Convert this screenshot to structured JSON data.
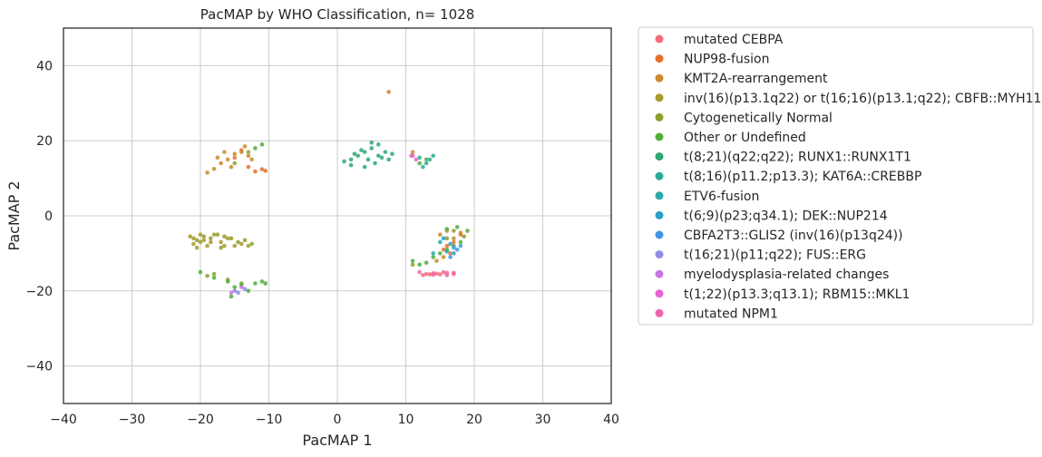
{
  "chart_data": {
    "type": "scatter",
    "title": "PacMAP by WHO Classification, n= 1028",
    "xlabel": "PacMAP 1",
    "ylabel": "PacMAP 2",
    "xlim": [
      -40,
      40
    ],
    "ylim": [
      -50,
      50
    ],
    "xticks": [
      -40,
      -30,
      -20,
      -10,
      0,
      10,
      20,
      30,
      40
    ],
    "yticks": [
      -40,
      -20,
      0,
      20,
      40
    ],
    "grid": true,
    "legend_position": "outside-right",
    "series": [
      {
        "name": "mutated CEBPA",
        "color": "#f46b7a",
        "points": [
          [
            13,
            -15.5
          ],
          [
            14,
            -15.3
          ],
          [
            15,
            -15.6
          ],
          [
            16,
            -15.2
          ],
          [
            12.5,
            -15.8
          ],
          [
            17,
            -15.5
          ],
          [
            14.5,
            -15.4
          ],
          [
            13.5,
            -15.6
          ]
        ]
      },
      {
        "name": "NUP98-fusion",
        "color": "#e8702f",
        "points": [
          [
            -12,
            11.8
          ],
          [
            -11,
            12.4
          ],
          [
            -10.5,
            12
          ],
          [
            -13,
            13
          ],
          [
            -15,
            15.5
          ],
          [
            16,
            -8
          ],
          [
            17,
            -7
          ],
          [
            15.5,
            -9
          ],
          [
            18,
            -5
          ],
          [
            16.5,
            -10
          ],
          [
            -14,
            17.5
          ]
        ]
      },
      {
        "name": "KMT2A-rearrangement",
        "color": "#c98a2f",
        "points": [
          [
            -19,
            11.5
          ],
          [
            -18,
            12.5
          ],
          [
            -17,
            14
          ],
          [
            -16,
            15
          ],
          [
            -15,
            16.5
          ],
          [
            -14,
            17
          ],
          [
            -13,
            16
          ],
          [
            -12.5,
            15
          ],
          [
            -17.5,
            15.5
          ],
          [
            -16.5,
            17
          ],
          [
            -13.5,
            18.5
          ],
          [
            15,
            -5
          ],
          [
            16,
            -4
          ],
          [
            17,
            -6
          ],
          [
            18,
            -4.5
          ],
          [
            15.5,
            -11
          ],
          [
            14.5,
            -12
          ],
          [
            7.5,
            33
          ],
          [
            11,
            17
          ],
          [
            -15.5,
            13
          ]
        ]
      },
      {
        "name": "inv(16)(p13.1q22) or t(16;16)(p13.1;q22); CBFB::MYH11",
        "color": "#a79a2b",
        "points": [
          [
            -21,
            -6
          ],
          [
            -20,
            -7
          ],
          [
            -19,
            -8
          ],
          [
            -21.5,
            -5.5
          ],
          [
            -20.5,
            -8.5
          ],
          [
            -19.5,
            -6.5
          ],
          [
            -18,
            -5
          ],
          [
            -17,
            -7
          ],
          [
            -16,
            -6
          ],
          [
            -15,
            -8
          ],
          [
            -14,
            -7.5
          ],
          [
            -13,
            -8
          ],
          [
            -18.5,
            -7
          ],
          [
            -20,
            -5
          ],
          [
            -21,
            -7.5
          ],
          [
            -16.5,
            -8
          ]
        ]
      },
      {
        "name": "Cytogenetically Normal",
        "color": "#8da02c",
        "points": [
          [
            -20.5,
            -6.5
          ],
          [
            -19.5,
            -5.5
          ],
          [
            -18.5,
            -6
          ],
          [
            -17.5,
            -5
          ],
          [
            -16.5,
            -5.5
          ],
          [
            -15.5,
            -6
          ],
          [
            -14.5,
            -7
          ],
          [
            -13.5,
            -6.5
          ],
          [
            -12.5,
            -7.5
          ],
          [
            -17,
            -8.5
          ],
          [
            -19,
            -16
          ],
          [
            -16,
            -17
          ],
          [
            -14,
            -18
          ],
          [
            -18,
            -15.5
          ],
          [
            16,
            -6
          ],
          [
            17,
            -4
          ],
          [
            18.5,
            -5.5
          ],
          [
            -15,
            14
          ],
          [
            -13,
            17
          ],
          [
            11,
            -13
          ]
        ]
      },
      {
        "name": "Other or Undefined",
        "color": "#4fae38",
        "points": [
          [
            -20,
            -15
          ],
          [
            -18,
            -16.5
          ],
          [
            -16,
            -17.5
          ],
          [
            -14,
            -18.5
          ],
          [
            -12,
            -18
          ],
          [
            -10.5,
            -18
          ],
          [
            -15,
            -19
          ],
          [
            -13,
            -20
          ],
          [
            -15.5,
            -21.5
          ],
          [
            -11,
            -17.5
          ],
          [
            11,
            -12
          ],
          [
            12,
            -13
          ],
          [
            13,
            -12.5
          ],
          [
            14,
            -11
          ],
          [
            15,
            -10
          ],
          [
            16,
            -9
          ],
          [
            17,
            -8
          ],
          [
            18,
            -7
          ],
          [
            19,
            -4
          ],
          [
            16,
            -3.5
          ],
          [
            17.5,
            -3
          ],
          [
            -11,
            19
          ],
          [
            -12,
            18
          ],
          [
            12,
            14
          ],
          [
            13,
            15
          ]
        ]
      },
      {
        "name": "t(8;21)(q22;q22); RUNX1::RUNX1T1",
        "color": "#2aa874",
        "points": [
          [
            1,
            14.5
          ],
          [
            2,
            15
          ],
          [
            3,
            16
          ],
          [
            4,
            17
          ],
          [
            5,
            18
          ],
          [
            6,
            19
          ],
          [
            7,
            17
          ],
          [
            6.5,
            15.5
          ],
          [
            5.5,
            14
          ],
          [
            4.5,
            15
          ],
          [
            3.5,
            17.5
          ],
          [
            2.5,
            16.5
          ],
          [
            6,
            16
          ],
          [
            7.5,
            15
          ],
          [
            4,
            13
          ],
          [
            2,
            13.5
          ],
          [
            5,
            19.5
          ],
          [
            8,
            16.5
          ]
        ]
      },
      {
        "name": "t(8;16)(p11.2;p13.3); KAT6A::CREBBP",
        "color": "#2aab97",
        "points": [
          [
            12,
            15.5
          ],
          [
            13,
            14
          ],
          [
            14,
            16
          ],
          [
            12.5,
            13
          ],
          [
            13.5,
            15
          ]
        ]
      },
      {
        "name": "ETV6-fusion",
        "color": "#2ba8a8",
        "points": [
          [
            15,
            -7
          ],
          [
            16,
            -9.5
          ],
          [
            14,
            -10
          ]
        ]
      },
      {
        "name": "t(6;9)(p23;q34.1); DEK::NUP214",
        "color": "#2b9fc6",
        "points": [
          [
            15.5,
            -6
          ],
          [
            16.5,
            -7.5
          ],
          [
            17,
            -10
          ]
        ]
      },
      {
        "name": "CBFA2T3::GLIS2 (inv(16)(p13q24))",
        "color": "#3f96e6",
        "points": [
          [
            17,
            -8.5
          ],
          [
            18,
            -8
          ],
          [
            17.5,
            -9
          ],
          [
            16.5,
            -11
          ]
        ]
      },
      {
        "name": "t(16;21)(p11;q22); FUS::ERG",
        "color": "#8f8be6",
        "points": [
          [
            -15,
            -20
          ],
          [
            -14.5,
            -20.5
          ],
          [
            -13.5,
            -19.5
          ]
        ]
      },
      {
        "name": "myelodysplasia-related changes",
        "color": "#c778e6",
        "points": [
          [
            -14,
            -19
          ],
          [
            -15.5,
            -20.5
          ]
        ]
      },
      {
        "name": "t(1;22)(p13.3;q13.1); RBM15::MKL1",
        "color": "#ea62d3",
        "points": [
          [
            11.5,
            15
          ],
          [
            10.8,
            16
          ]
        ]
      },
      {
        "name": "mutated NPM1",
        "color": "#ee64ab",
        "points": [
          [
            12,
            -15
          ],
          [
            14,
            -15.7
          ],
          [
            15.5,
            -15
          ],
          [
            16,
            -15.8
          ],
          [
            17,
            -15.2
          ],
          [
            11,
            16
          ]
        ]
      }
    ]
  }
}
